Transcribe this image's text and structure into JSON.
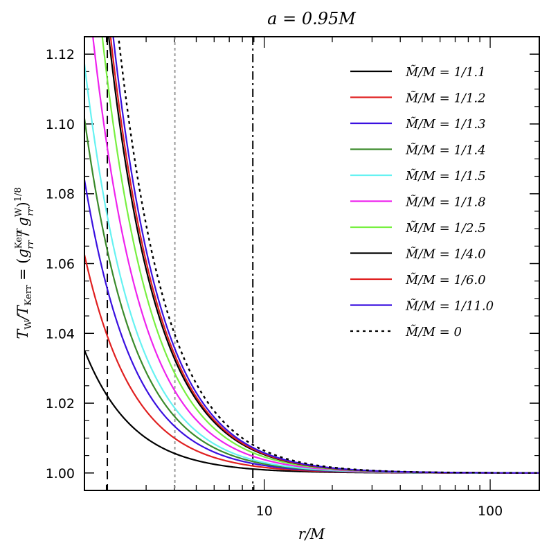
{
  "chart_data": {
    "type": "line",
    "title": "a = 0.95M",
    "xlabel": "r/M",
    "ylabel": "T_W/T_Kerr = (g_rr^Kerr / g_rr^W)^1/8",
    "xscale": "log",
    "xlim": [
      1.6,
      165
    ],
    "ylim": [
      0.995,
      1.125
    ],
    "x_ticks": [
      {
        "value": 10,
        "label": "10"
      },
      {
        "value": 100,
        "label": "100"
      }
    ],
    "y_ticks": [
      {
        "value": 1.0,
        "label": "1.00"
      },
      {
        "value": 1.02,
        "label": "1.02"
      },
      {
        "value": 1.04,
        "label": "1.04"
      },
      {
        "value": 1.06,
        "label": "1.06"
      },
      {
        "value": 1.08,
        "label": "1.08"
      },
      {
        "value": 1.1,
        "label": "1.10"
      },
      {
        "value": 1.12,
        "label": "1.12"
      }
    ],
    "legend_position": "top-right",
    "series": [
      {
        "name": "M̃/M = 1/1.1",
        "color": "#000000",
        "dash": "solid",
        "coef": 0.09
      },
      {
        "name": "M̃/M = 1/1.2",
        "color": "#e02020",
        "dash": "solid",
        "coef": 0.16
      },
      {
        "name": "M̃/M = 1/1.3",
        "color": "#3a10e0",
        "dash": "solid",
        "coef": 0.215
      },
      {
        "name": "M̃/M = 1/1.4",
        "color": "#3a8a2a",
        "dash": "solid",
        "coef": 0.26
      },
      {
        "name": "M̃/M = 1/1.5",
        "color": "#66f2f2",
        "dash": "solid",
        "coef": 0.3
      },
      {
        "name": "M̃/M = 1/1.8",
        "color": "#ee22ee",
        "dash": "solid",
        "coef": 0.38
      },
      {
        "name": "M̃/M = 1/2.5",
        "color": "#77f040",
        "dash": "solid",
        "coef": 0.46
      },
      {
        "name": "M̃/M = 1/4.0",
        "color": "#000000",
        "dash": "solid",
        "coef": 0.525
      },
      {
        "name": "M̃/M = 1/6.0",
        "color": "#e02020",
        "dash": "solid",
        "coef": 0.545
      },
      {
        "name": "M̃/M = 1/11.0",
        "color": "#3a10e0",
        "dash": "solid",
        "coef": 0.575
      },
      {
        "name": "M̃/M = 0",
        "color": "#000000",
        "dash": "dotted",
        "coef": 0.64
      }
    ],
    "vertical_lines": [
      {
        "x": 2.02,
        "style": "dashed",
        "color": "#000000"
      },
      {
        "x": 4.02,
        "style": "dotted",
        "color": "#999999"
      },
      {
        "x": 8.9,
        "style": "dash-dot",
        "color": "#000000"
      }
    ]
  }
}
